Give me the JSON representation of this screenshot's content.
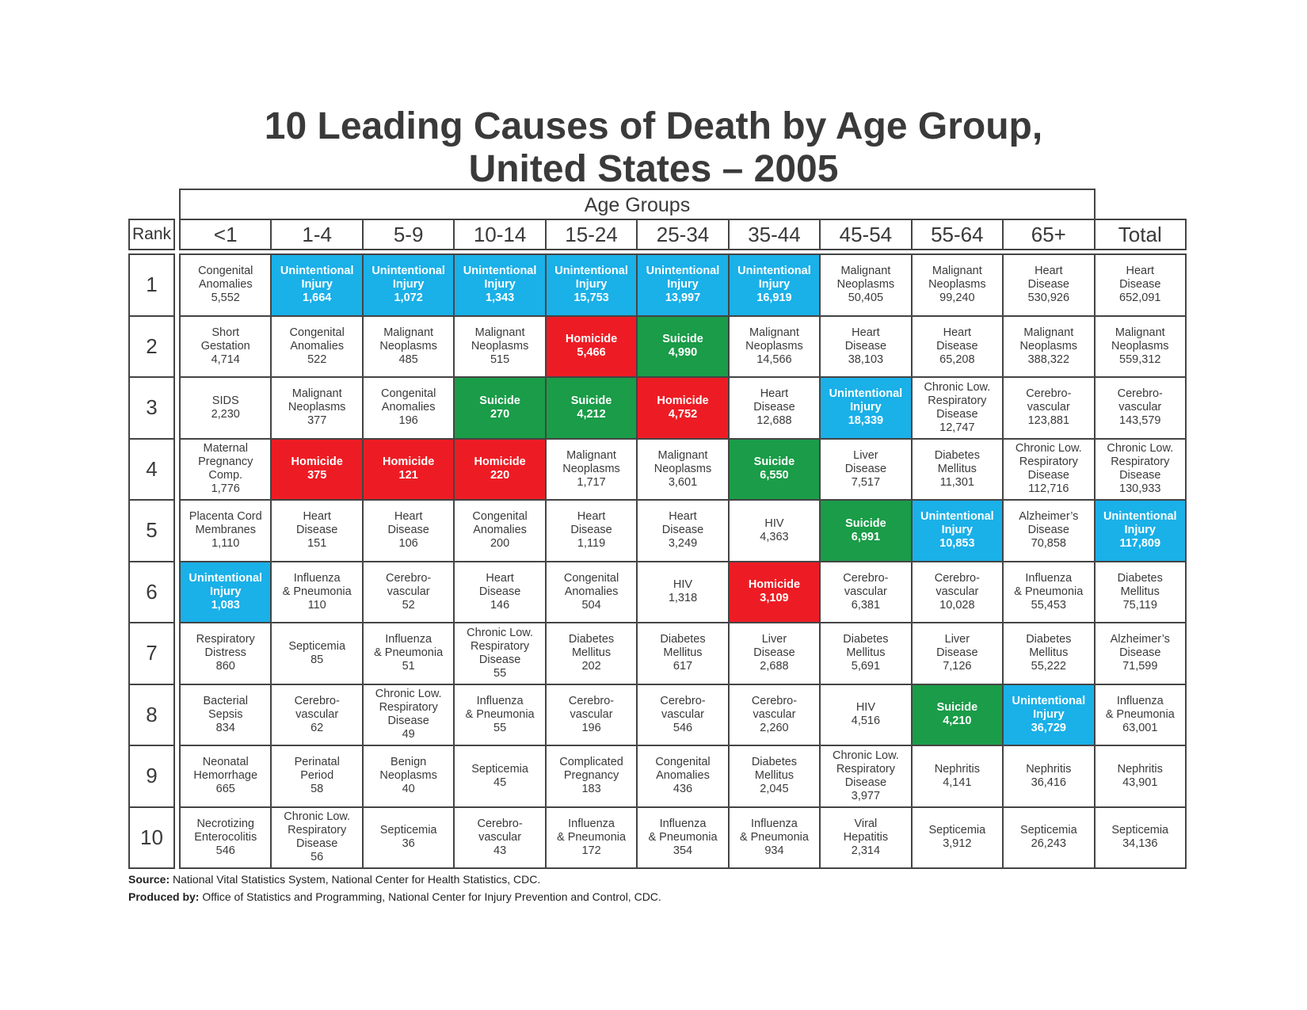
{
  "chart_data": {
    "type": "table",
    "title_line1": "10 Leading Causes of Death by Age Group,",
    "title_line2": "United States – 2005",
    "column_group_label": "Age Groups",
    "rank_label": "Rank",
    "columns": [
      "<1",
      "1-4",
      "5-9",
      "10-14",
      "15-24",
      "25-34",
      "35-44",
      "45-54",
      "55-64",
      "65+",
      "Total"
    ],
    "ranks": [
      "1",
      "2",
      "3",
      "4",
      "5",
      "6",
      "7",
      "8",
      "9",
      "10"
    ],
    "colors": {
      "unintentional_injury": "#1ab0e8",
      "homicide": "#ed1c24",
      "suicide": "#1a9c48"
    },
    "rows": [
      [
        {
          "lines": [
            "Congenital",
            "Anomalies",
            "5,552"
          ]
        },
        {
          "lines": [
            "Unintentional",
            "Injury",
            "1,664"
          ],
          "hl": "unintentional_injury"
        },
        {
          "lines": [
            "Unintentional",
            "Injury",
            "1,072"
          ],
          "hl": "unintentional_injury"
        },
        {
          "lines": [
            "Unintentional",
            "Injury",
            "1,343"
          ],
          "hl": "unintentional_injury"
        },
        {
          "lines": [
            "Unintentional",
            "Injury",
            "15,753"
          ],
          "hl": "unintentional_injury"
        },
        {
          "lines": [
            "Unintentional",
            "Injury",
            "13,997"
          ],
          "hl": "unintentional_injury"
        },
        {
          "lines": [
            "Unintentional",
            "Injury",
            "16,919"
          ],
          "hl": "unintentional_injury"
        },
        {
          "lines": [
            "Malignant",
            "Neoplasms",
            "50,405"
          ]
        },
        {
          "lines": [
            "Malignant",
            "Neoplasms",
            "99,240"
          ]
        },
        {
          "lines": [
            "Heart",
            "Disease",
            "530,926"
          ]
        },
        {
          "lines": [
            "Heart",
            "Disease",
            "652,091"
          ]
        }
      ],
      [
        {
          "lines": [
            "Short",
            "Gestation",
            "4,714"
          ]
        },
        {
          "lines": [
            "Congenital",
            "Anomalies",
            "522"
          ]
        },
        {
          "lines": [
            "Malignant",
            "Neoplasms",
            "485"
          ]
        },
        {
          "lines": [
            "Malignant",
            "Neoplasms",
            "515"
          ]
        },
        {
          "lines": [
            "Homicide",
            "5,466"
          ],
          "hl": "homicide"
        },
        {
          "lines": [
            "Suicide",
            "4,990"
          ],
          "hl": "suicide"
        },
        {
          "lines": [
            "Malignant",
            "Neoplasms",
            "14,566"
          ]
        },
        {
          "lines": [
            "Heart",
            "Disease",
            "38,103"
          ]
        },
        {
          "lines": [
            "Heart",
            "Disease",
            "65,208"
          ]
        },
        {
          "lines": [
            "Malignant",
            "Neoplasms",
            "388,322"
          ]
        },
        {
          "lines": [
            "Malignant",
            "Neoplasms",
            "559,312"
          ]
        }
      ],
      [
        {
          "lines": [
            "SIDS",
            "2,230"
          ]
        },
        {
          "lines": [
            "Malignant",
            "Neoplasms",
            "377"
          ]
        },
        {
          "lines": [
            "Congenital",
            "Anomalies",
            "196"
          ]
        },
        {
          "lines": [
            "Suicide",
            "270"
          ],
          "hl": "suicide"
        },
        {
          "lines": [
            "Suicide",
            "4,212"
          ],
          "hl": "suicide"
        },
        {
          "lines": [
            "Homicide",
            "4,752"
          ],
          "hl": "homicide"
        },
        {
          "lines": [
            "Heart",
            "Disease",
            "12,688"
          ]
        },
        {
          "lines": [
            "Unintentional",
            "Injury",
            "18,339"
          ],
          "hl": "unintentional_injury"
        },
        {
          "lines": [
            "Chronic Low.",
            "Respiratory",
            "Disease",
            "12,747"
          ]
        },
        {
          "lines": [
            "Cerebro-",
            "vascular",
            "123,881"
          ]
        },
        {
          "lines": [
            "Cerebro-",
            "vascular",
            "143,579"
          ]
        }
      ],
      [
        {
          "lines": [
            "Maternal",
            "Pregnancy",
            "Comp.",
            "1,776"
          ]
        },
        {
          "lines": [
            "Homicide",
            "375"
          ],
          "hl": "homicide"
        },
        {
          "lines": [
            "Homicide",
            "121"
          ],
          "hl": "homicide"
        },
        {
          "lines": [
            "Homicide",
            "220"
          ],
          "hl": "homicide"
        },
        {
          "lines": [
            "Malignant",
            "Neoplasms",
            "1,717"
          ]
        },
        {
          "lines": [
            "Malignant",
            "Neoplasms",
            "3,601"
          ]
        },
        {
          "lines": [
            "Suicide",
            "6,550"
          ],
          "hl": "suicide"
        },
        {
          "lines": [
            "Liver",
            "Disease",
            "7,517"
          ]
        },
        {
          "lines": [
            "Diabetes",
            "Mellitus",
            "11,301"
          ]
        },
        {
          "lines": [
            "Chronic Low.",
            "Respiratory",
            "Disease",
            "112,716"
          ]
        },
        {
          "lines": [
            "Chronic Low.",
            "Respiratory",
            "Disease",
            "130,933"
          ]
        }
      ],
      [
        {
          "lines": [
            "Placenta Cord",
            "Membranes",
            "1,110"
          ]
        },
        {
          "lines": [
            "Heart",
            "Disease",
            "151"
          ]
        },
        {
          "lines": [
            "Heart",
            "Disease",
            "106"
          ]
        },
        {
          "lines": [
            "Congenital",
            "Anomalies",
            "200"
          ]
        },
        {
          "lines": [
            "Heart",
            "Disease",
            "1,119"
          ]
        },
        {
          "lines": [
            "Heart",
            "Disease",
            "3,249"
          ]
        },
        {
          "lines": [
            "HIV",
            "4,363"
          ]
        },
        {
          "lines": [
            "Suicide",
            "6,991"
          ],
          "hl": "suicide"
        },
        {
          "lines": [
            "Unintentional",
            "Injury",
            "10,853"
          ],
          "hl": "unintentional_injury"
        },
        {
          "lines": [
            "Alzheimer’s",
            "Disease",
            "70,858"
          ]
        },
        {
          "lines": [
            "Unintentional",
            "Injury",
            "117,809"
          ],
          "hl": "unintentional_injury"
        }
      ],
      [
        {
          "lines": [
            "Unintentional",
            "Injury",
            "1,083"
          ],
          "hl": "unintentional_injury"
        },
        {
          "lines": [
            "Influenza",
            "& Pneumonia",
            "110"
          ]
        },
        {
          "lines": [
            "Cerebro-",
            "vascular",
            "52"
          ]
        },
        {
          "lines": [
            "Heart",
            "Disease",
            "146"
          ]
        },
        {
          "lines": [
            "Congenital",
            "Anomalies",
            "504"
          ]
        },
        {
          "lines": [
            "HIV",
            "1,318"
          ]
        },
        {
          "lines": [
            "Homicide",
            "3,109"
          ],
          "hl": "homicide"
        },
        {
          "lines": [
            "Cerebro-",
            "vascular",
            "6,381"
          ]
        },
        {
          "lines": [
            "Cerebro-",
            "vascular",
            "10,028"
          ]
        },
        {
          "lines": [
            "Influenza",
            "& Pneumonia",
            "55,453"
          ]
        },
        {
          "lines": [
            "Diabetes",
            "Mellitus",
            "75,119"
          ]
        }
      ],
      [
        {
          "lines": [
            "Respiratory",
            "Distress",
            "860"
          ]
        },
        {
          "lines": [
            "Septicemia",
            "85"
          ]
        },
        {
          "lines": [
            "Influenza",
            "& Pneumonia",
            "51"
          ]
        },
        {
          "lines": [
            "Chronic Low.",
            "Respiratory",
            "Disease",
            "55"
          ]
        },
        {
          "lines": [
            "Diabetes",
            "Mellitus",
            "202"
          ]
        },
        {
          "lines": [
            "Diabetes",
            "Mellitus",
            "617"
          ]
        },
        {
          "lines": [
            "Liver",
            "Disease",
            "2,688"
          ]
        },
        {
          "lines": [
            "Diabetes",
            "Mellitus",
            "5,691"
          ]
        },
        {
          "lines": [
            "Liver",
            "Disease",
            "7,126"
          ]
        },
        {
          "lines": [
            "Diabetes",
            "Mellitus",
            "55,222"
          ]
        },
        {
          "lines": [
            "Alzheimer’s",
            "Disease",
            "71,599"
          ]
        }
      ],
      [
        {
          "lines": [
            "Bacterial",
            "Sepsis",
            "834"
          ]
        },
        {
          "lines": [
            "Cerebro-",
            "vascular",
            "62"
          ]
        },
        {
          "lines": [
            "Chronic Low.",
            "Respiratory",
            "Disease",
            "49"
          ]
        },
        {
          "lines": [
            "Influenza",
            "& Pneumonia",
            "55"
          ]
        },
        {
          "lines": [
            "Cerebro-",
            "vascular",
            "196"
          ]
        },
        {
          "lines": [
            "Cerebro-",
            "vascular",
            "546"
          ]
        },
        {
          "lines": [
            "Cerebro-",
            "vascular",
            "2,260"
          ]
        },
        {
          "lines": [
            "HIV",
            "4,516"
          ]
        },
        {
          "lines": [
            "Suicide",
            "4,210"
          ],
          "hl": "suicide"
        },
        {
          "lines": [
            "Unintentional",
            "Injury",
            "36,729"
          ],
          "hl": "unintentional_injury"
        },
        {
          "lines": [
            "Influenza",
            "& Pneumonia",
            "63,001"
          ]
        }
      ],
      [
        {
          "lines": [
            "Neonatal",
            "Hemorrhage",
            "665"
          ]
        },
        {
          "lines": [
            "Perinatal",
            "Period",
            "58"
          ]
        },
        {
          "lines": [
            "Benign",
            "Neoplasms",
            "40"
          ]
        },
        {
          "lines": [
            "Septicemia",
            "45"
          ]
        },
        {
          "lines": [
            "Complicated",
            "Pregnancy",
            "183"
          ]
        },
        {
          "lines": [
            "Congenital",
            "Anomalies",
            "436"
          ]
        },
        {
          "lines": [
            "Diabetes",
            "Mellitus",
            "2,045"
          ]
        },
        {
          "lines": [
            "Chronic Low.",
            "Respiratory",
            "Disease",
            "3,977"
          ]
        },
        {
          "lines": [
            "Nephritis",
            "4,141"
          ]
        },
        {
          "lines": [
            "Nephritis",
            "36,416"
          ]
        },
        {
          "lines": [
            "Nephritis",
            "43,901"
          ]
        }
      ],
      [
        {
          "lines": [
            "Necrotizing",
            "Enterocolitis",
            "546"
          ]
        },
        {
          "lines": [
            "Chronic Low.",
            "Respiratory",
            "Disease",
            "56"
          ]
        },
        {
          "lines": [
            "Septicemia",
            "36"
          ]
        },
        {
          "lines": [
            "Cerebro-",
            "vascular",
            "43"
          ]
        },
        {
          "lines": [
            "Influenza",
            "& Pneumonia",
            "172"
          ]
        },
        {
          "lines": [
            "Influenza",
            "& Pneumonia",
            "354"
          ]
        },
        {
          "lines": [
            "Influenza",
            "& Pneumonia",
            "934"
          ]
        },
        {
          "lines": [
            "Viral",
            "Hepatitis",
            "2,314"
          ]
        },
        {
          "lines": [
            "Septicemia",
            "3,912"
          ]
        },
        {
          "lines": [
            "Septicemia",
            "26,243"
          ]
        },
        {
          "lines": [
            "Septicemia",
            "34,136"
          ]
        }
      ]
    ]
  },
  "footer": {
    "source_label": "Source:",
    "source_text": "National Vital Statistics System, National Center for Health Statistics, CDC.",
    "produced_label": "Produced by:",
    "produced_text": "Office of Statistics and Programming, National Center for Injury Prevention and Control, CDC."
  }
}
